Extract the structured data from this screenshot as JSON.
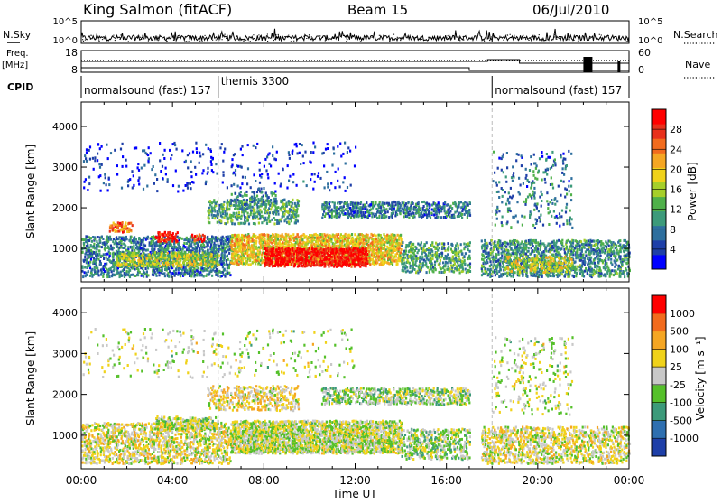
{
  "header": {
    "station": "King Salmon (fitACF)",
    "beam": "Beam 15",
    "date": "06/Jul/2010"
  },
  "top_panels": {
    "nsky_label": "N.Sky",
    "nsearch_label": "N.Search",
    "nsky_ticks": [
      "10^5",
      "10^0"
    ],
    "nsearch_ticks": [
      "10^5",
      "10^0"
    ],
    "freq_label_1": "Freq.",
    "freq_label_2": "[MHz]",
    "freq_ticks": [
      "18",
      "8"
    ],
    "nave_label": "Nave",
    "nave_ticks": [
      "60",
      "0"
    ],
    "cpid_label": "CPID",
    "cpid_segments": [
      {
        "label": "normalsound (fast) 157",
        "start_h": 0.0,
        "end_h": 6.0
      },
      {
        "label": "themis 3300",
        "start_h": 6.0,
        "end_h": 18.0
      },
      {
        "label": "normalsound (fast) 157",
        "start_h": 18.0,
        "end_h": 24.0
      }
    ]
  },
  "chart_data": [
    {
      "type": "heatmap",
      "name": "power",
      "xlabel": "Time UT",
      "ylabel": "Slant Range [km]",
      "xlim": [
        0,
        24
      ],
      "ylim": [
        180,
        4600
      ],
      "x_tick_labels": [
        "00:00",
        "04:00",
        "08:00",
        "12:00",
        "16:00",
        "20:00",
        "00:00"
      ],
      "x_tick_values_h": [
        0,
        4,
        8,
        12,
        16,
        20,
        24
      ],
      "y_ticks": [
        1000,
        2000,
        3000,
        4000
      ],
      "colorbar_label": "Power [dB]",
      "colorbar_ticks": [
        "28",
        "24",
        "20",
        "16",
        "12",
        "8",
        "4"
      ],
      "colorbar_colors": [
        "#0000ff",
        "#1e3fa8",
        "#2e6f9e",
        "#3c9a7a",
        "#4fb04a",
        "#a6cf2a",
        "#f0d21a",
        "#f5a623",
        "#f26b1d",
        "#e8301b",
        "#ff0000"
      ],
      "regions": [
        {
          "t0": 0.0,
          "t1": 6.5,
          "r0": 300,
          "r1": 1300,
          "level": 0.25,
          "density": 0.6
        },
        {
          "t0": 1.5,
          "t1": 6.0,
          "r0": 550,
          "r1": 900,
          "level": 0.5,
          "density": 0.7
        },
        {
          "t0": 1.2,
          "t1": 2.2,
          "r0": 1400,
          "r1": 1650,
          "level": 0.75,
          "density": 0.6
        },
        {
          "t0": 3.2,
          "t1": 4.2,
          "r0": 1150,
          "r1": 1400,
          "level": 0.9,
          "density": 0.6
        },
        {
          "t0": 4.8,
          "t1": 5.4,
          "r0": 1150,
          "r1": 1350,
          "level": 0.9,
          "density": 0.5
        },
        {
          "t0": 5.5,
          "t1": 9.5,
          "r0": 1600,
          "r1": 2200,
          "level": 0.35,
          "density": 0.5
        },
        {
          "t0": 6.5,
          "t1": 8.5,
          "r0": 2050,
          "r1": 2400,
          "level": 0.3,
          "density": 0.3
        },
        {
          "t0": 6.5,
          "t1": 14.0,
          "r0": 600,
          "r1": 1350,
          "level": 0.6,
          "density": 0.8
        },
        {
          "t0": 8.0,
          "t1": 12.5,
          "r0": 550,
          "r1": 1000,
          "level": 0.95,
          "density": 0.85
        },
        {
          "t0": 10.5,
          "t1": 17.0,
          "r0": 1750,
          "r1": 2150,
          "level": 0.25,
          "density": 0.6
        },
        {
          "t0": 14.0,
          "t1": 17.0,
          "r0": 400,
          "r1": 1150,
          "level": 0.35,
          "density": 0.5
        },
        {
          "t0": 17.5,
          "t1": 24.0,
          "r0": 300,
          "r1": 1200,
          "level": 0.3,
          "density": 0.55
        },
        {
          "t0": 18.5,
          "t1": 21.5,
          "r0": 400,
          "r1": 800,
          "level": 0.55,
          "density": 0.5
        },
        {
          "t0": 0.0,
          "t1": 12.0,
          "r0": 2400,
          "r1": 3600,
          "level": 0.1,
          "density": 0.06
        },
        {
          "t0": 18.0,
          "t1": 21.5,
          "r0": 1500,
          "r1": 3400,
          "level": 0.25,
          "density": 0.12
        }
      ]
    },
    {
      "type": "heatmap",
      "name": "velocity",
      "xlabel": "Time UT",
      "ylabel": "Slant Range [km]",
      "xlim": [
        0,
        24
      ],
      "ylim": [
        180,
        4600
      ],
      "x_tick_labels": [
        "00:00",
        "04:00",
        "08:00",
        "12:00",
        "16:00",
        "20:00",
        "00:00"
      ],
      "x_tick_values_h": [
        0,
        4,
        8,
        12,
        16,
        20,
        24
      ],
      "y_ticks": [
        1000,
        2000,
        3000,
        4000
      ],
      "colorbar_label": "Velocity [m s⁻¹]",
      "colorbar_ticks": [
        "1000",
        "500",
        "100",
        "25",
        "-25",
        "-100",
        "-500",
        "-1000"
      ],
      "colorbar_colors": [
        "#1e3fa8",
        "#2e6fb0",
        "#3c9a7a",
        "#55c02a",
        "#c8c8c8",
        "#f0d21a",
        "#f5a623",
        "#f26b1d",
        "#ff0000"
      ],
      "regions": [
        {
          "t0": 0.0,
          "t1": 6.5,
          "r0": 300,
          "r1": 1300,
          "level": 0.55,
          "density": 0.55
        },
        {
          "t0": 3.2,
          "t1": 6.0,
          "r0": 1150,
          "r1": 1450,
          "level": 0.5,
          "density": 0.6
        },
        {
          "t0": 5.5,
          "t1": 9.5,
          "r0": 1600,
          "r1": 2200,
          "level": 0.6,
          "density": 0.45
        },
        {
          "t0": 6.5,
          "t1": 14.0,
          "r0": 550,
          "r1": 1350,
          "level": 0.5,
          "density": 0.85
        },
        {
          "t0": 10.5,
          "t1": 17.0,
          "r0": 1750,
          "r1": 2150,
          "level": 0.45,
          "density": 0.6
        },
        {
          "t0": 14.0,
          "t1": 17.0,
          "r0": 400,
          "r1": 1150,
          "level": 0.45,
          "density": 0.5
        },
        {
          "t0": 17.5,
          "t1": 24.0,
          "r0": 300,
          "r1": 1200,
          "level": 0.55,
          "density": 0.5
        },
        {
          "t0": 0.0,
          "t1": 12.0,
          "r0": 2400,
          "r1": 3600,
          "level": 0.5,
          "density": 0.06
        },
        {
          "t0": 18.0,
          "t1": 21.5,
          "r0": 1500,
          "r1": 3400,
          "level": 0.5,
          "density": 0.12
        }
      ]
    }
  ]
}
